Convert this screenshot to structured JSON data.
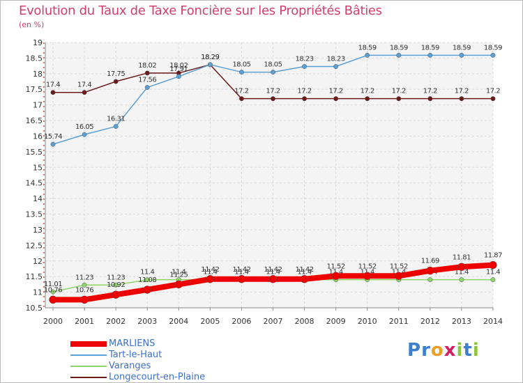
{
  "chart_data": {
    "type": "line",
    "title": "Evolution du Taux de Taxe Foncière sur les Propriétés Bâties",
    "ylabel": "(en %)",
    "xlabel": "",
    "ylim": [
      10.5,
      19
    ],
    "yticks": [
      "10.5",
      "11",
      "11.5",
      "12",
      "12.5",
      "13",
      "13.5",
      "14",
      "14.5",
      "15",
      "15.5",
      "16",
      "16.5",
      "17",
      "17.5",
      "18",
      "18.5",
      "19"
    ],
    "x": [
      "2000",
      "2001",
      "2002",
      "2003",
      "2004",
      "2005",
      "2006",
      "2007",
      "2008",
      "2009",
      "2010",
      "2011",
      "2012",
      "2013",
      "2014"
    ],
    "series": [
      {
        "name": "Longecourt-en-Plaine",
        "color": "#6b1a1a",
        "labels": [
          "17.4",
          "17.4",
          "17.75",
          "18.02",
          "18.02",
          "18.29",
          "17.2",
          "17.2",
          "17.2",
          "17.2",
          "17.2",
          "17.2",
          "17.2",
          "17.2",
          "17.2"
        ],
        "values": [
          17.4,
          17.4,
          17.75,
          18.02,
          18.02,
          18.29,
          17.2,
          17.2,
          17.2,
          17.2,
          17.2,
          17.2,
          17.2,
          17.2,
          17.2
        ]
      },
      {
        "name": "Tart-le-Haut",
        "color": "#5b9fd4",
        "labels": [
          "15.74",
          "16.05",
          "16.31",
          "17.56",
          "17.91",
          "18.29",
          "18.05",
          "18.05",
          "18.23",
          "18.23",
          "18.59",
          "18.59",
          "18.59",
          "18.59",
          "18.59"
        ],
        "values": [
          15.74,
          16.05,
          16.31,
          17.56,
          17.91,
          18.29,
          18.05,
          18.05,
          18.23,
          18.23,
          18.59,
          18.59,
          18.59,
          18.59,
          18.59
        ]
      },
      {
        "name": "Varanges",
        "color": "#8fd46a",
        "labels": [
          "11.01",
          "11.23",
          "11.23",
          "11.4",
          "11.4",
          "11.4",
          "11.4",
          "11.4",
          "11.4",
          "11.4",
          "11.4",
          "11.4",
          "11.4",
          "11.4",
          "11.4"
        ],
        "values": [
          11.01,
          11.23,
          11.23,
          11.4,
          11.4,
          11.4,
          11.4,
          11.4,
          11.4,
          11.4,
          11.4,
          11.4,
          11.4,
          11.4,
          11.4
        ]
      },
      {
        "name": "MARLIENS",
        "color": "#ee0000",
        "labels": [
          "10.76",
          "10.76",
          "10.92",
          "11.08",
          "11.25",
          "11.42",
          "11.42",
          "11.42",
          "11.42",
          "11.52",
          "11.52",
          "11.52",
          "11.69",
          "11.81",
          "11.87"
        ],
        "values": [
          10.76,
          10.76,
          10.92,
          11.08,
          11.25,
          11.42,
          11.42,
          11.42,
          11.42,
          11.52,
          11.52,
          11.52,
          11.69,
          11.81,
          11.87
        ]
      }
    ],
    "legend_order": [
      "MARLIENS",
      "Tart-le-Haut",
      "Varanges",
      "Longecourt-en-Plaine"
    ],
    "grid": true,
    "legend_position": "bottom-left"
  },
  "logo_text": [
    "P",
    "r",
    "o",
    "x",
    "i",
    "t",
    "i"
  ],
  "logo_colors": [
    "#3a7fd0",
    "#3a7fd0",
    "#f0a020",
    "#d02060",
    "#8cc63f",
    "#3a7fd0",
    "#8cc63f"
  ]
}
